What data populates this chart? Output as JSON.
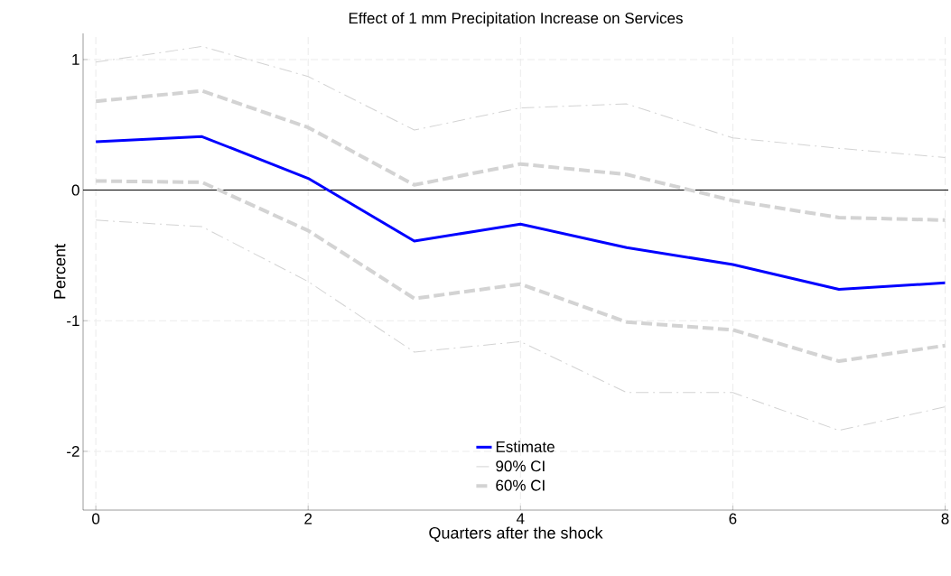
{
  "chart_data": {
    "type": "line",
    "title": "Effect of 1 mm Precipitation Increase on Services",
    "xlabel": "Quarters after the shock",
    "ylabel": "Percent",
    "x": [
      0,
      1,
      2,
      3,
      4,
      5,
      6,
      7,
      8
    ],
    "series": [
      {
        "name": "Estimate",
        "color": "#0000ff",
        "line_style": "solid",
        "values": [
          0.37,
          0.41,
          0.09,
          -0.39,
          -0.26,
          -0.44,
          -0.57,
          -0.76,
          -0.71
        ]
      },
      {
        "name": "90% CI",
        "color": "#d3d3d3",
        "line_style": "dashdot",
        "values": [
          0.98,
          1.1,
          0.87,
          0.46,
          0.63,
          0.66,
          0.4,
          0.32,
          0.25
        ]
      },
      {
        "color": "#d3d3d3",
        "line_style": "dashdot",
        "values": [
          -0.23,
          -0.28,
          -0.7,
          -1.24,
          -1.16,
          -1.55,
          -1.55,
          -1.84,
          -1.66
        ]
      },
      {
        "name": "60% CI",
        "color": "#d3d3d3",
        "line_style": "dashed",
        "values": [
          0.68,
          0.76,
          0.48,
          0.04,
          0.2,
          0.12,
          -0.08,
          -0.21,
          -0.23
        ]
      },
      {
        "color": "#d3d3d3",
        "line_style": "dashed",
        "values": [
          0.07,
          0.06,
          -0.31,
          -0.83,
          -0.72,
          -1.01,
          -1.07,
          -1.31,
          -1.19
        ]
      }
    ],
    "xlim": [
      -0.12,
      8.03
    ],
    "ylim": [
      -2.45,
      1.2
    ],
    "xticks": [
      0,
      2,
      4,
      6,
      8
    ],
    "yticks": [
      -2,
      -1,
      0,
      1
    ],
    "ref_lines": [
      {
        "axis": "y",
        "value": 0,
        "color": "#000000"
      }
    ],
    "grid": true,
    "legend": "bottom",
    "marker": "none"
  }
}
